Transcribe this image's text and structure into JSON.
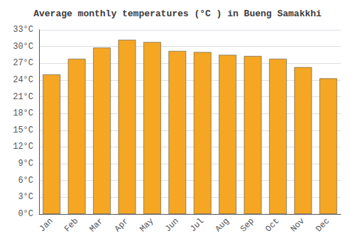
{
  "chart_data": {
    "type": "bar",
    "title": "Average monthly temperatures (°C ) in Bueng Samakkhi",
    "categories": [
      "Jan",
      "Feb",
      "Mar",
      "Apr",
      "May",
      "Jun",
      "Jul",
      "Aug",
      "Sep",
      "Oct",
      "Nov",
      "Dec"
    ],
    "values": [
      25.0,
      27.8,
      29.8,
      31.2,
      30.8,
      29.2,
      29.0,
      28.5,
      28.3,
      27.8,
      26.3,
      24.3
    ],
    "color": "#F5A623",
    "ylim": [
      0,
      33
    ],
    "yticks": [
      {
        "value": 0,
        "label": "0°C"
      },
      {
        "value": 3,
        "label": "3°C"
      },
      {
        "value": 6,
        "label": "6°C"
      },
      {
        "value": 9,
        "label": "9°C"
      },
      {
        "value": 12,
        "label": "12°C"
      },
      {
        "value": 15,
        "label": "15°C"
      },
      {
        "value": 18,
        "label": "18°C"
      },
      {
        "value": 21,
        "label": "21°C"
      },
      {
        "value": 24,
        "label": "24°C"
      },
      {
        "value": 27,
        "label": "27°C"
      },
      {
        "value": 30,
        "label": "30°C"
      },
      {
        "value": 33,
        "label": "33°C"
      }
    ],
    "grid": true
  }
}
